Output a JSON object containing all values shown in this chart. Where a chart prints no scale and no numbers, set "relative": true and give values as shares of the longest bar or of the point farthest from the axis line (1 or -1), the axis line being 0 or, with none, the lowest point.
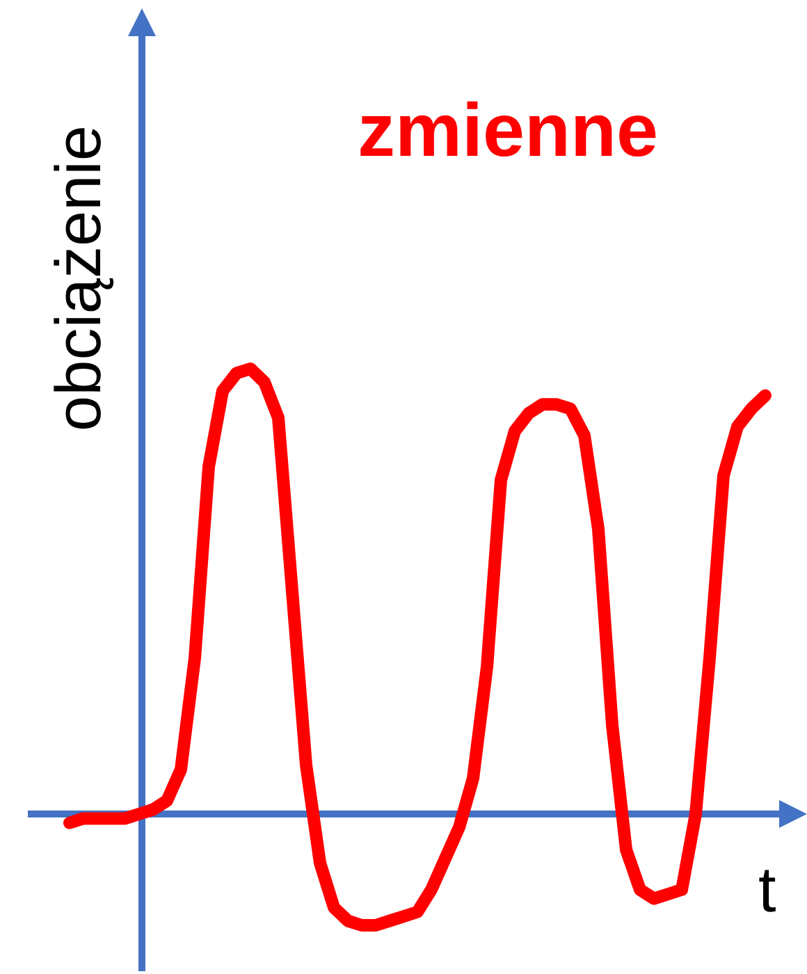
{
  "chart_data": {
    "type": "line",
    "title": "zmienne",
    "xlabel": "t",
    "ylabel": "obciążenie",
    "relative": true,
    "grid": false,
    "ref_lines": [
      {
        "axis": "y",
        "value": 0,
        "color": "#4472c4"
      }
    ],
    "marker": "none",
    "line_style": "solid",
    "categories": [
      null,
      null,
      null,
      null,
      null,
      null,
      null,
      null,
      null,
      null,
      null,
      null,
      null,
      null,
      null,
      null,
      null,
      null,
      null,
      null,
      null,
      null,
      null,
      null,
      null,
      null,
      null,
      null,
      null,
      null,
      null,
      null,
      null,
      null,
      null,
      null,
      null,
      null,
      null,
      null,
      null,
      null,
      null,
      null,
      null,
      null,
      null,
      null,
      null,
      null,
      null
    ],
    "series": [
      {
        "color": "#ff0000",
        "values": [
          -0.02,
          -0.01,
          -0.01,
          -0.01,
          -0.01,
          0.0,
          0.01,
          0.03,
          0.1,
          0.35,
          0.78,
          0.95,
          0.99,
          1.0,
          0.97,
          0.89,
          0.5,
          0.11,
          -0.11,
          -0.21,
          -0.24,
          -0.25,
          -0.25,
          -0.24,
          -0.23,
          -0.22,
          -0.17,
          -0.1,
          -0.03,
          0.08,
          0.33,
          0.75,
          0.86,
          0.9,
          0.92,
          0.92,
          0.91,
          0.85,
          0.64,
          0.2,
          -0.08,
          -0.17,
          -0.19,
          -0.18,
          -0.17,
          0.0,
          0.35,
          0.76,
          0.87,
          0.91,
          0.94
        ]
      }
    ]
  }
}
